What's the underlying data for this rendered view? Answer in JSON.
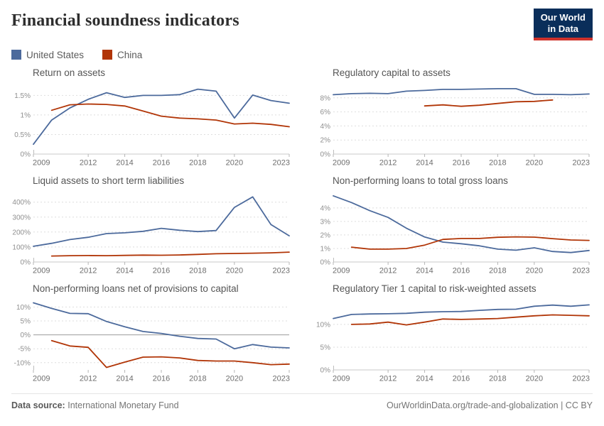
{
  "page": {
    "title": "Financial soundness indicators",
    "logo": {
      "line1": "Our World",
      "line2": "in Data",
      "bg_color": "#0a2e5a",
      "underline_color": "#cf322b"
    },
    "footer": {
      "source_label": "Data source:",
      "source_value": "International Monetary Fund",
      "right_text": "OurWorldinData.org/trade-and-globalization | CC BY"
    }
  },
  "legend": [
    {
      "label": "United States",
      "color": "#4C6A9C"
    },
    {
      "label": "China",
      "color": "#B13507"
    }
  ],
  "chart_data": [
    {
      "type": "line",
      "title": "Return on assets",
      "ylim": [
        0,
        1.78
      ],
      "xlim": [
        2009,
        2023
      ],
      "xticks": [
        2009,
        2012,
        2014,
        2016,
        2018,
        2020,
        2023
      ],
      "yticks": [
        {
          "v": 0,
          "label": "0%"
        },
        {
          "v": 0.5,
          "label": "0.5%"
        },
        {
          "v": 1,
          "label": "1%"
        },
        {
          "v": 1.5,
          "label": "1.5%"
        }
      ],
      "zero_mid": false,
      "series": [
        {
          "name": "United States",
          "color": "#4C6A9C",
          "x": [
            2009,
            2010,
            2011,
            2012,
            2013,
            2014,
            2015,
            2016,
            2017,
            2018,
            2019,
            2020,
            2021,
            2022,
            2023
          ],
          "values": [
            0.25,
            0.87,
            1.18,
            1.4,
            1.57,
            1.45,
            1.5,
            1.5,
            1.52,
            1.66,
            1.61,
            0.92,
            1.51,
            1.37,
            1.3
          ]
        },
        {
          "name": "China",
          "color": "#B13507",
          "x": [
            2010,
            2011,
            2012,
            2013,
            2014,
            2015,
            2016,
            2017,
            2018,
            2019,
            2020,
            2021,
            2022,
            2023
          ],
          "values": [
            1.12,
            1.26,
            1.28,
            1.27,
            1.23,
            1.1,
            0.97,
            0.92,
            0.9,
            0.87,
            0.77,
            0.79,
            0.76,
            0.7
          ]
        }
      ]
    },
    {
      "type": "line",
      "title": "Regulatory capital to assets",
      "ylim": [
        0,
        9.9
      ],
      "xlim": [
        2009,
        2023
      ],
      "xticks": [
        2009,
        2012,
        2014,
        2016,
        2018,
        2020,
        2023
      ],
      "yticks": [
        {
          "v": 0,
          "label": "0%"
        },
        {
          "v": 2,
          "label": "2%"
        },
        {
          "v": 4,
          "label": "4%"
        },
        {
          "v": 6,
          "label": "6%"
        },
        {
          "v": 8,
          "label": "8%"
        }
      ],
      "zero_mid": false,
      "series": [
        {
          "name": "United States",
          "color": "#4C6A9C",
          "x": [
            2009,
            2010,
            2011,
            2012,
            2013,
            2014,
            2015,
            2016,
            2017,
            2018,
            2019,
            2020,
            2021,
            2022,
            2023
          ],
          "values": [
            8.45,
            8.6,
            8.65,
            8.6,
            8.95,
            9.05,
            9.2,
            9.2,
            9.25,
            9.3,
            9.3,
            8.5,
            8.5,
            8.45,
            8.55
          ]
        },
        {
          "name": "China",
          "color": "#B13507",
          "x": [
            2014,
            2015,
            2016,
            2017,
            2018,
            2019,
            2020,
            2021
          ],
          "values": [
            6.85,
            7.0,
            6.8,
            6.95,
            7.2,
            7.45,
            7.5,
            7.7
          ]
        }
      ]
    },
    {
      "type": "line",
      "title": "Liquid assets to short term liabilities",
      "ylim": [
        0,
        465
      ],
      "xlim": [
        2009,
        2023
      ],
      "xticks": [
        2009,
        2012,
        2014,
        2016,
        2018,
        2020,
        2023
      ],
      "yticks": [
        {
          "v": 0,
          "label": "0%"
        },
        {
          "v": 100,
          "label": "100%"
        },
        {
          "v": 200,
          "label": "200%"
        },
        {
          "v": 300,
          "label": "300%"
        },
        {
          "v": 400,
          "label": "400%"
        }
      ],
      "zero_mid": false,
      "series": [
        {
          "name": "United States",
          "color": "#4C6A9C",
          "x": [
            2009,
            2010,
            2011,
            2012,
            2013,
            2014,
            2015,
            2016,
            2017,
            2018,
            2019,
            2020,
            2021,
            2022,
            2023
          ],
          "values": [
            105,
            125,
            150,
            165,
            190,
            195,
            205,
            225,
            212,
            203,
            210,
            365,
            435,
            250,
            175
          ]
        },
        {
          "name": "China",
          "color": "#B13507",
          "x": [
            2010,
            2011,
            2012,
            2013,
            2014,
            2015,
            2016,
            2017,
            2018,
            2019,
            2020,
            2021,
            2022,
            2023
          ],
          "values": [
            40,
            42,
            43,
            42,
            44,
            46,
            45,
            47,
            51,
            55,
            57,
            59,
            61,
            66
          ]
        }
      ]
    },
    {
      "type": "line",
      "title": "Non-performing loans to total gross loans",
      "ylim": [
        0,
        5.15
      ],
      "xlim": [
        2009,
        2023
      ],
      "xticks": [
        2009,
        2012,
        2014,
        2016,
        2018,
        2020,
        2023
      ],
      "yticks": [
        {
          "v": 0,
          "label": "0%"
        },
        {
          "v": 1,
          "label": "1%"
        },
        {
          "v": 2,
          "label": "2%"
        },
        {
          "v": 3,
          "label": "3%"
        },
        {
          "v": 4,
          "label": "4%"
        }
      ],
      "zero_mid": false,
      "series": [
        {
          "name": "United States",
          "color": "#4C6A9C",
          "x": [
            2009,
            2010,
            2011,
            2012,
            2013,
            2014,
            2015,
            2016,
            2017,
            2018,
            2019,
            2020,
            2021,
            2022,
            2023
          ],
          "values": [
            4.9,
            4.4,
            3.8,
            3.3,
            2.5,
            1.85,
            1.47,
            1.35,
            1.2,
            0.95,
            0.87,
            1.05,
            0.78,
            0.7,
            0.85
          ]
        },
        {
          "name": "China",
          "color": "#B13507",
          "x": [
            2010,
            2011,
            2012,
            2013,
            2014,
            2015,
            2016,
            2017,
            2018,
            2019,
            2020,
            2021,
            2022,
            2023
          ],
          "values": [
            1.1,
            0.95,
            0.95,
            1.0,
            1.25,
            1.67,
            1.74,
            1.74,
            1.83,
            1.86,
            1.84,
            1.73,
            1.63,
            1.6
          ]
        }
      ]
    },
    {
      "type": "line",
      "title": "Non-performing loans net of provisions to capital",
      "ylim": [
        -12.6,
        12.4
      ],
      "xlim": [
        2009,
        2023
      ],
      "xticks": [
        2009,
        2012,
        2014,
        2016,
        2018,
        2020,
        2023
      ],
      "yticks": [
        {
          "v": -10,
          "label": "-10%"
        },
        {
          "v": -5,
          "label": "-5%"
        },
        {
          "v": 0,
          "label": "0%"
        },
        {
          "v": 5,
          "label": "5%"
        },
        {
          "v": 10,
          "label": "10%"
        }
      ],
      "zero_mid": true,
      "series": [
        {
          "name": "United States",
          "color": "#4C6A9C",
          "x": [
            2009,
            2010,
            2011,
            2012,
            2013,
            2014,
            2015,
            2016,
            2017,
            2018,
            2019,
            2020,
            2021,
            2022,
            2023
          ],
          "values": [
            11.5,
            9.5,
            7.7,
            7.6,
            4.8,
            2.9,
            1.2,
            0.5,
            -0.5,
            -1.3,
            -1.5,
            -5.0,
            -3.5,
            -4.4,
            -4.7
          ]
        },
        {
          "name": "China",
          "color": "#B13507",
          "x": [
            2010,
            2011,
            2012,
            2013,
            2014,
            2015,
            2016,
            2017,
            2018,
            2019,
            2020,
            2021,
            2022,
            2023
          ],
          "values": [
            -2.1,
            -4.0,
            -4.5,
            -11.7,
            -9.8,
            -8.0,
            -7.9,
            -8.3,
            -9.2,
            -9.4,
            -9.4,
            -10.0,
            -10.7,
            -10.5
          ]
        }
      ]
    },
    {
      "type": "line",
      "title": "Regulatory Tier 1 capital to risk-weighted assets",
      "ylim": [
        0,
        15.3
      ],
      "xlim": [
        2009,
        2023
      ],
      "xticks": [
        2009,
        2012,
        2014,
        2016,
        2018,
        2020,
        2023
      ],
      "yticks": [
        {
          "v": 0,
          "label": "0%"
        },
        {
          "v": 5,
          "label": "5%"
        },
        {
          "v": 10,
          "label": "10%"
        }
      ],
      "zero_mid": false,
      "series": [
        {
          "name": "United States",
          "color": "#4C6A9C",
          "x": [
            2009,
            2010,
            2011,
            2012,
            2013,
            2014,
            2015,
            2016,
            2017,
            2018,
            2019,
            2020,
            2021,
            2022,
            2023
          ],
          "values": [
            11.3,
            12.2,
            12.3,
            12.35,
            12.45,
            12.7,
            12.8,
            12.85,
            13.1,
            13.3,
            13.35,
            14.0,
            14.25,
            14.0,
            14.3
          ]
        },
        {
          "name": "China",
          "color": "#B13507",
          "x": [
            2010,
            2011,
            2012,
            2013,
            2014,
            2015,
            2016,
            2017,
            2018,
            2019,
            2020,
            2021,
            2022,
            2023
          ],
          "values": [
            10.0,
            10.1,
            10.5,
            9.9,
            10.5,
            11.2,
            11.1,
            11.2,
            11.3,
            11.6,
            11.9,
            12.1,
            12.0,
            11.9
          ]
        }
      ]
    }
  ]
}
